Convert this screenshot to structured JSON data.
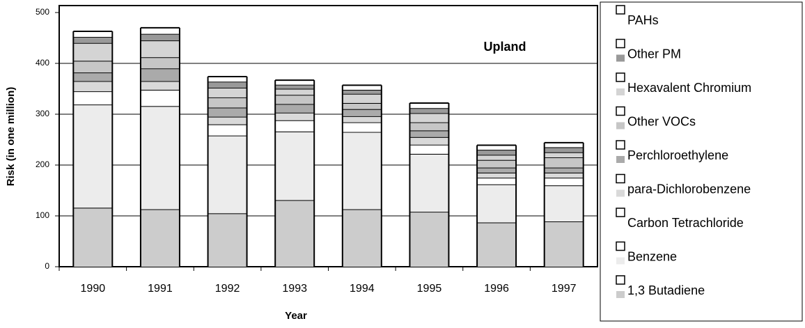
{
  "chart_data": {
    "type": "bar",
    "stacked": true,
    "annotation": "Upland",
    "x_label": "Year",
    "y_label": "Risk (in one million)",
    "categories": [
      "1990",
      "1991",
      "1992",
      "1993",
      "1994",
      "1995",
      "1996",
      "1997"
    ],
    "ylim": [
      0,
      500
    ],
    "yticks": [
      0,
      100,
      200,
      300,
      400,
      500
    ],
    "grid": true,
    "legend": "right",
    "series": [
      {
        "name": "1,3 Butadiene",
        "color": "#cccccc",
        "values": [
          116,
          113,
          105,
          131,
          113,
          108,
          87,
          89
        ]
      },
      {
        "name": "Benzene",
        "color": "#ececec",
        "values": [
          203,
          203,
          153,
          135,
          152,
          114,
          75,
          71
        ]
      },
      {
        "name": "Carbon Tetrachloride",
        "color": "#ffffff",
        "values": [
          26,
          32,
          22,
          22,
          19,
          18,
          13,
          15
        ]
      },
      {
        "name": "para-Dichlorobenzene",
        "color": "#d9d9d9",
        "values": [
          20,
          17,
          15,
          15,
          12,
          15,
          10,
          10
        ]
      },
      {
        "name": "Perchloroethylene",
        "color": "#aaaaaa",
        "values": [
          17,
          25,
          18,
          17,
          14,
          13,
          10,
          10
        ]
      },
      {
        "name": "Other VOCs",
        "color": "#c6c6c6",
        "values": [
          23,
          22,
          20,
          18,
          12,
          16,
          15,
          20
        ]
      },
      {
        "name": "Hexavalent Chromium",
        "color": "#d4d4d4",
        "values": [
          35,
          33,
          19,
          12,
          18,
          18,
          10,
          10
        ]
      },
      {
        "name": "Other PM",
        "color": "#999999",
        "values": [
          12,
          13,
          12,
          8,
          8,
          10,
          10,
          10
        ]
      },
      {
        "name": "PAHs",
        "color": "#ffffff",
        "values": [
          11,
          12,
          10,
          9,
          9,
          10,
          9,
          9
        ]
      }
    ]
  }
}
